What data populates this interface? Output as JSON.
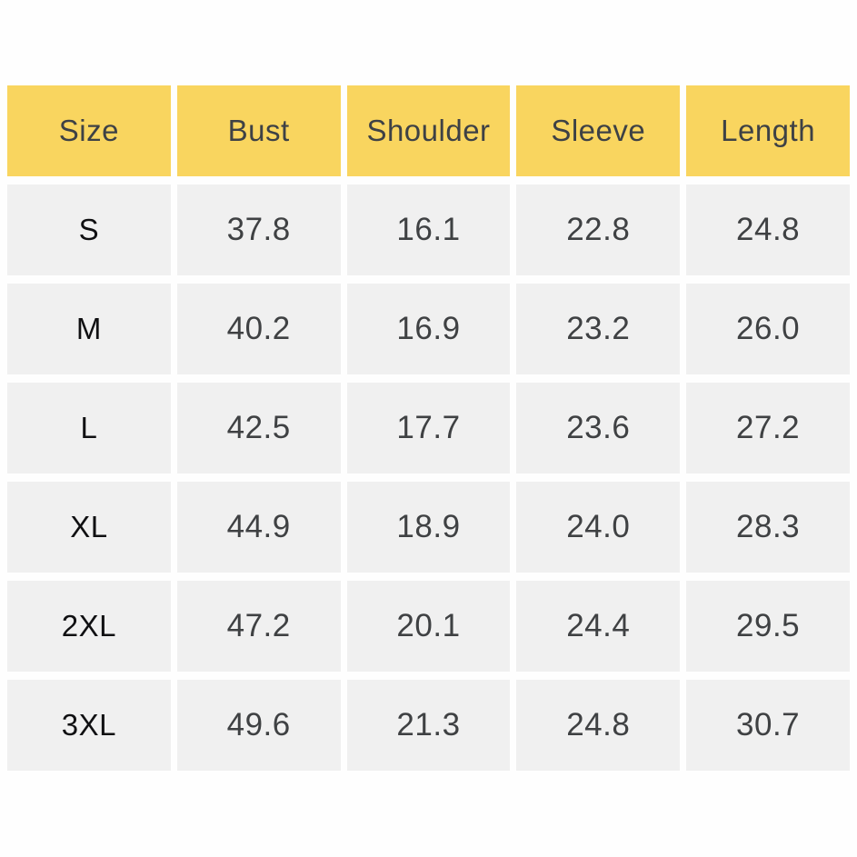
{
  "colors": {
    "header_bg": "#f9d55f",
    "cell_bg": "#f0f0f0",
    "header_text": "#3e4145",
    "value_text": "#3f4143",
    "size_label_text": "#101012",
    "page_bg": "#fefefe"
  },
  "chart_data": {
    "type": "table",
    "title": "",
    "columns": [
      "Size",
      "Bust",
      "Shoulder",
      "Sleeve",
      "Length"
    ],
    "rows": [
      [
        "S",
        "37.8",
        "16.1",
        "22.8",
        "24.8"
      ],
      [
        "M",
        "40.2",
        "16.9",
        "23.2",
        "26.0"
      ],
      [
        "L",
        "42.5",
        "17.7",
        "23.6",
        "27.2"
      ],
      [
        "XL",
        "44.9",
        "18.9",
        "24.0",
        "28.3"
      ],
      [
        "2XL",
        "47.2",
        "20.1",
        "24.4",
        "29.5"
      ],
      [
        "3XL",
        "49.6",
        "21.3",
        "24.8",
        "30.7"
      ]
    ],
    "layout_hints": {
      "header_fill": "#f9d55f",
      "body_fill": "#f0f0f0",
      "gap_color": "#ffffff",
      "grid": "spaced-cells"
    }
  }
}
